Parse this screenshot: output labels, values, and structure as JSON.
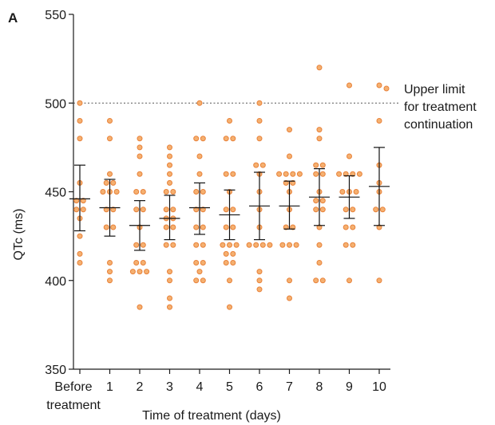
{
  "panel_label": "A",
  "colors": {
    "point_fill": "#f5b070",
    "point_stroke": "#e8823a",
    "axis": "#1a1a1a",
    "reference_line": "#555555"
  },
  "chart_data": {
    "type": "scatter",
    "title": "",
    "xlabel": "Time of treatment (days)",
    "ylabel": "QTc (ms)",
    "ylim": [
      350,
      550
    ],
    "yticks": [
      350,
      400,
      450,
      500,
      550
    ],
    "grid": false,
    "categories": [
      {
        "line1": "Before",
        "line2": "treatment"
      },
      {
        "line1": "1",
        "line2": ""
      },
      {
        "line1": "2",
        "line2": ""
      },
      {
        "line1": "3",
        "line2": ""
      },
      {
        "line1": "4",
        "line2": ""
      },
      {
        "line1": "5",
        "line2": ""
      },
      {
        "line1": "6",
        "line2": ""
      },
      {
        "line1": "7",
        "line2": ""
      },
      {
        "line1": "8",
        "line2": ""
      },
      {
        "line1": "9",
        "line2": ""
      },
      {
        "line1": "10",
        "line2": ""
      }
    ],
    "groups": [
      {
        "points": [
          [
            0,
            500
          ],
          [
            0,
            490
          ],
          [
            0,
            480
          ],
          [
            0,
            455
          ],
          [
            -1,
            445
          ],
          [
            1,
            445
          ],
          [
            -1,
            440
          ],
          [
            1,
            440
          ],
          [
            0,
            435
          ],
          [
            0,
            425
          ],
          [
            0,
            415
          ],
          [
            0,
            410
          ]
        ],
        "mean": 446,
        "error": [
          428,
          465
        ]
      },
      {
        "points": [
          [
            0,
            490
          ],
          [
            0,
            480
          ],
          [
            0,
            460
          ],
          [
            -1,
            455
          ],
          [
            1,
            455
          ],
          [
            -2,
            450
          ],
          [
            0,
            450
          ],
          [
            2,
            450
          ],
          [
            -1,
            440
          ],
          [
            1,
            440
          ],
          [
            -1,
            430
          ],
          [
            1,
            430
          ],
          [
            0,
            410
          ],
          [
            0,
            405
          ],
          [
            0,
            400
          ]
        ],
        "mean": 441,
        "error": [
          425,
          457
        ]
      },
      {
        "points": [
          [
            0,
            480
          ],
          [
            0,
            475
          ],
          [
            0,
            470
          ],
          [
            0,
            460
          ],
          [
            -1,
            450
          ],
          [
            1,
            450
          ],
          [
            -1,
            440
          ],
          [
            1,
            440
          ],
          [
            0,
            430
          ],
          [
            -1,
            420
          ],
          [
            1,
            420
          ],
          [
            -1,
            410
          ],
          [
            1,
            410
          ],
          [
            -2,
            405
          ],
          [
            0,
            405
          ],
          [
            2,
            405
          ],
          [
            0,
            385
          ]
        ],
        "mean": 431,
        "error": [
          417,
          445
        ]
      },
      {
        "points": [
          [
            0,
            475
          ],
          [
            0,
            470
          ],
          [
            0,
            465
          ],
          [
            0,
            460
          ],
          [
            0,
            455
          ],
          [
            -1,
            450
          ],
          [
            1,
            450
          ],
          [
            -1,
            440
          ],
          [
            1,
            440
          ],
          [
            -1,
            435
          ],
          [
            1,
            435
          ],
          [
            -1,
            430
          ],
          [
            1,
            430
          ],
          [
            -1,
            420
          ],
          [
            1,
            420
          ],
          [
            0,
            405
          ],
          [
            0,
            400
          ],
          [
            0,
            390
          ],
          [
            0,
            385
          ]
        ],
        "mean": 435,
        "error": [
          423,
          448
        ]
      },
      {
        "points": [
          [
            0,
            500
          ],
          [
            -1,
            480
          ],
          [
            1,
            480
          ],
          [
            0,
            470
          ],
          [
            0,
            460
          ],
          [
            -1,
            450
          ],
          [
            1,
            450
          ],
          [
            -1,
            440
          ],
          [
            1,
            440
          ],
          [
            -1,
            430
          ],
          [
            1,
            430
          ],
          [
            -1,
            420
          ],
          [
            1,
            420
          ],
          [
            -1,
            410
          ],
          [
            1,
            410
          ],
          [
            0,
            405
          ],
          [
            -1,
            400
          ],
          [
            1,
            400
          ]
        ],
        "mean": 441,
        "error": [
          426,
          455
        ]
      },
      {
        "points": [
          [
            0,
            490
          ],
          [
            -1,
            480
          ],
          [
            1,
            480
          ],
          [
            -1,
            460
          ],
          [
            1,
            460
          ],
          [
            0,
            450
          ],
          [
            -1,
            440
          ],
          [
            1,
            440
          ],
          [
            -1,
            430
          ],
          [
            1,
            430
          ],
          [
            -2,
            420
          ],
          [
            0,
            420
          ],
          [
            2,
            420
          ],
          [
            -1,
            415
          ],
          [
            1,
            415
          ],
          [
            -1,
            410
          ],
          [
            1,
            410
          ],
          [
            0,
            400
          ],
          [
            0,
            385
          ]
        ],
        "mean": 437,
        "error": [
          423,
          451
        ]
      },
      {
        "points": [
          [
            0,
            500
          ],
          [
            0,
            490
          ],
          [
            0,
            480
          ],
          [
            -1,
            465
          ],
          [
            1,
            465
          ],
          [
            0,
            460
          ],
          [
            0,
            450
          ],
          [
            0,
            440
          ],
          [
            0,
            430
          ],
          [
            -3,
            420
          ],
          [
            -1,
            420
          ],
          [
            1,
            420
          ],
          [
            3,
            420
          ],
          [
            0,
            405
          ],
          [
            0,
            400
          ],
          [
            0,
            395
          ]
        ],
        "mean": 442,
        "error": [
          423,
          461
        ]
      },
      {
        "points": [
          [
            0,
            485
          ],
          [
            0,
            470
          ],
          [
            -3,
            460
          ],
          [
            -1,
            460
          ],
          [
            1,
            460
          ],
          [
            3,
            460
          ],
          [
            -1,
            455
          ],
          [
            1,
            455
          ],
          [
            0,
            450
          ],
          [
            0,
            440
          ],
          [
            -1,
            430
          ],
          [
            1,
            430
          ],
          [
            -2,
            420
          ],
          [
            0,
            420
          ],
          [
            2,
            420
          ],
          [
            0,
            400
          ],
          [
            0,
            390
          ]
        ],
        "mean": 442,
        "error": [
          429,
          456
        ]
      },
      {
        "points": [
          [
            0,
            520
          ],
          [
            0,
            485
          ],
          [
            0,
            480
          ],
          [
            -1,
            465
          ],
          [
            1,
            465
          ],
          [
            -1,
            460
          ],
          [
            1,
            460
          ],
          [
            0,
            450
          ],
          [
            -1,
            445
          ],
          [
            1,
            445
          ],
          [
            -1,
            440
          ],
          [
            1,
            440
          ],
          [
            0,
            430
          ],
          [
            0,
            420
          ],
          [
            0,
            410
          ],
          [
            -1,
            400
          ],
          [
            1,
            400
          ]
        ],
        "mean": 447,
        "error": [
          431,
          463
        ]
      },
      {
        "points": [
          [
            0,
            510
          ],
          [
            0,
            470
          ],
          [
            -3,
            460
          ],
          [
            -1,
            460
          ],
          [
            1,
            460
          ],
          [
            3,
            460
          ],
          [
            -2,
            450
          ],
          [
            0,
            450
          ],
          [
            2,
            450
          ],
          [
            -1,
            440
          ],
          [
            1,
            440
          ],
          [
            -1,
            430
          ],
          [
            1,
            430
          ],
          [
            -1,
            420
          ],
          [
            1,
            420
          ],
          [
            0,
            400
          ]
        ],
        "mean": 447,
        "error": [
          435,
          459
        ]
      },
      {
        "points": [
          [
            0,
            510
          ],
          [
            0,
            490
          ],
          [
            0,
            465
          ],
          [
            0,
            455
          ],
          [
            0,
            450
          ],
          [
            -1,
            440
          ],
          [
            1,
            440
          ],
          [
            0,
            430
          ],
          [
            0,
            400
          ]
        ],
        "mean": 453,
        "error": [
          431,
          475
        ]
      }
    ],
    "reference_line": {
      "value": 500,
      "style": "dotted",
      "label_lines": [
        "Upper limit",
        "for treatment",
        "continuation"
      ]
    }
  }
}
